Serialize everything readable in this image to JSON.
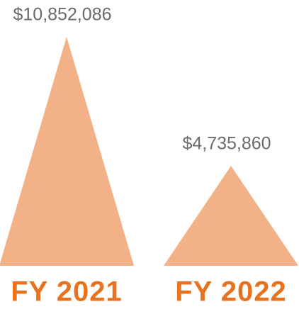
{
  "chart_data": {
    "type": "triangle-bar",
    "categories": [
      "FY 2021",
      "FY 2022"
    ],
    "values": [
      10852086,
      4735860
    ],
    "value_labels": [
      "$10,852,086",
      "$4,735,860"
    ],
    "color": "#f3b187"
  }
}
